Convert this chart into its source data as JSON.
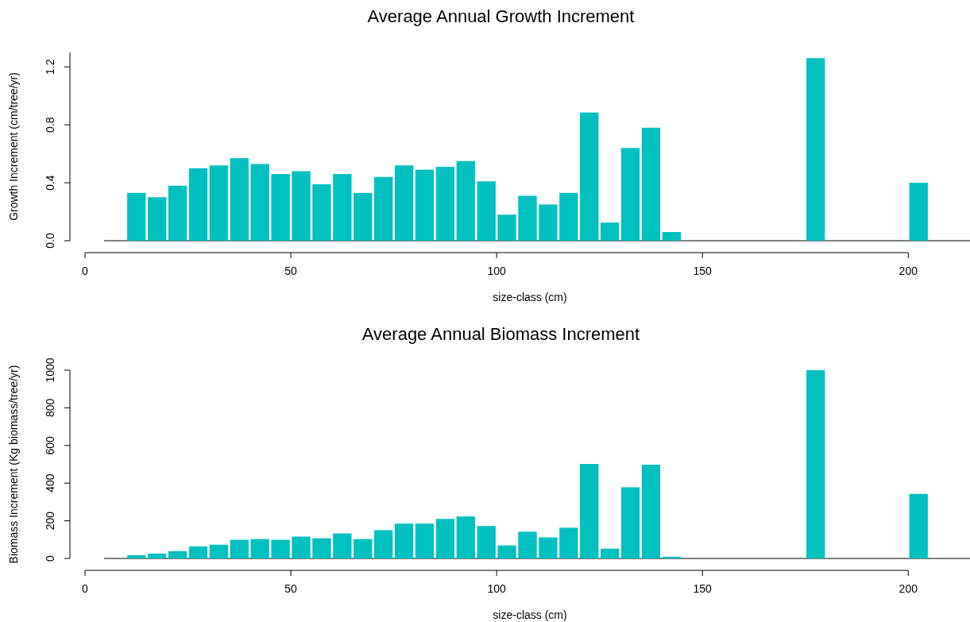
{
  "chart_data": [
    {
      "type": "bar",
      "title": "Average Annual Growth Increment",
      "xlabel": "size-class (cm)",
      "ylabel": "Growth Increment (cm/tree/yr)",
      "x": [
        12.5,
        17.5,
        22.5,
        27.5,
        32.5,
        37.5,
        42.5,
        47.5,
        52.5,
        57.5,
        62.5,
        67.5,
        72.5,
        77.5,
        82.5,
        87.5,
        92.5,
        97.5,
        102.5,
        107.5,
        112.5,
        117.5,
        122.5,
        127.5,
        132.5,
        137.5,
        142.5,
        177.5,
        202.5
      ],
      "values": [
        0.33,
        0.3,
        0.38,
        0.5,
        0.52,
        0.57,
        0.53,
        0.46,
        0.48,
        0.39,
        0.46,
        0.33,
        0.44,
        0.52,
        0.49,
        0.51,
        0.55,
        0.41,
        0.18,
        0.31,
        0.25,
        0.33,
        0.885,
        0.125,
        0.64,
        0.78,
        0.06,
        1.26,
        0.4
      ],
      "color": "#00c0c0",
      "xlim": [
        0,
        215
      ],
      "xticks": [
        0,
        50,
        100,
        150,
        200
      ],
      "ylim": [
        0,
        1.3
      ],
      "yticks": [
        {
          "value": 0,
          "label": "0.0"
        },
        {
          "value": 0.4,
          "label": "0.4"
        },
        {
          "value": 0.8,
          "label": "0.8"
        },
        {
          "value": 1.2,
          "label": "1.2"
        }
      ],
      "grid": false
    },
    {
      "type": "bar",
      "title": "Average Annual Biomass Increment",
      "xlabel": "size-class (cm)",
      "ylabel": "Biomass Increment (Kg biomass/tree/yr)",
      "x": [
        12.5,
        17.5,
        22.5,
        27.5,
        32.5,
        37.5,
        42.5,
        47.5,
        52.5,
        57.5,
        62.5,
        67.5,
        72.5,
        77.5,
        82.5,
        87.5,
        92.5,
        97.5,
        102.5,
        107.5,
        112.5,
        117.5,
        122.5,
        127.5,
        132.5,
        137.5,
        142.5,
        177.5,
        202.5
      ],
      "values": [
        17,
        26,
        39,
        64,
        73,
        99,
        103,
        99,
        116,
        107,
        133,
        103,
        150,
        185,
        185,
        210,
        223,
        172,
        69,
        142,
        112,
        163,
        502,
        52,
        378,
        498,
        9,
        1000,
        343
      ],
      "color": "#00c0c0",
      "xlim": [
        0,
        215
      ],
      "xticks": [
        0,
        50,
        100,
        150,
        200
      ],
      "ylim": [
        0,
        1000
      ],
      "yticks": [
        0,
        200,
        400,
        600,
        800,
        1000
      ],
      "grid": false
    }
  ]
}
